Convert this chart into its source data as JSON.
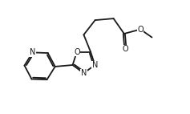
{
  "bg_color": "#ffffff",
  "line_color": "#1a1a1a",
  "line_width": 1.3,
  "font_size": 7.0,
  "fig_width": 2.37,
  "fig_height": 1.42,
  "dpi": 100,
  "xlim": [
    -0.3,
    7.8
  ],
  "ylim": [
    0.5,
    5.5
  ]
}
